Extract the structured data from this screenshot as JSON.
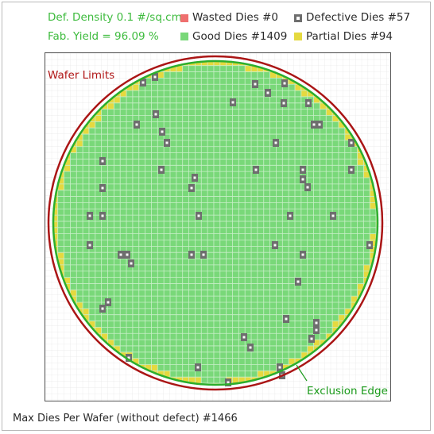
{
  "stats": {
    "defect_density": "Def. Density 0.1 #/sq.cm",
    "fab_yield": "Fab. Yield = 96.09 %"
  },
  "legend": {
    "wasted": {
      "label": "Wasted Dies  #0",
      "color": "#ef6f6f"
    },
    "defective": {
      "label": "Defective Dies  #57",
      "color": "#6e6e6e"
    },
    "good": {
      "label": "Good Dies #1409",
      "color": "#79d879"
    },
    "partial": {
      "label": "Partial Dies #94",
      "color": "#e5d93f"
    }
  },
  "wafer": {
    "wafer_limits_label": "Wafer Limits",
    "exclusion_edge_label": "Exclusion Edge",
    "wafer_limit_color": "#aa1515",
    "exclusion_edge_color": "#2cae2c",
    "good_color": "#79d879",
    "partial_color": "#e5d93f",
    "defect_color": "#6e6e6e"
  },
  "footer": {
    "max_dies": "Max Dies Per Wafer (without defect) #1466"
  }
}
